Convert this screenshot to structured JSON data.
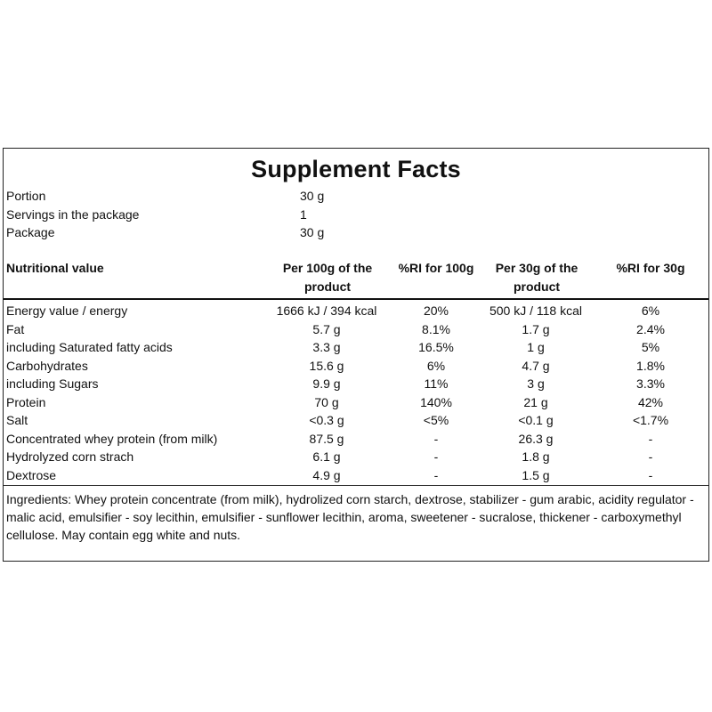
{
  "title": "Supplement Facts",
  "meta": [
    {
      "label": "Portion",
      "value": "30 g"
    },
    {
      "label": "Servings in the package",
      "value": "1"
    },
    {
      "label": "Package",
      "value": "30 g"
    }
  ],
  "table": {
    "headers": [
      "Nutritional value",
      "Per 100g of the product",
      "%RI for 100g",
      "Per 30g of the product",
      "%RI for 30g"
    ],
    "rows": [
      [
        "Energy value / energy",
        "1666 kJ / 394 kcal",
        "20%",
        "500 kJ / 118 kcal",
        "6%"
      ],
      [
        "Fat",
        "5.7 g",
        "8.1%",
        "1.7 g",
        "2.4%"
      ],
      [
        "including Saturated fatty acids",
        "3.3 g",
        "16.5%",
        "1 g",
        "5%"
      ],
      [
        "Carbohydrates",
        "15.6 g",
        "6%",
        "4.7 g",
        "1.8%"
      ],
      [
        "including Sugars",
        "9.9 g",
        "11%",
        "3 g",
        "3.3%"
      ],
      [
        "Protein",
        "70 g",
        "140%",
        "21 g",
        "42%"
      ],
      [
        "Salt",
        "<0.3 g",
        "<5%",
        "<0.1 g",
        "<1.7%"
      ],
      [
        "Concentrated whey protein (from milk)",
        "87.5 g",
        "-",
        "26.3 g",
        "-"
      ],
      [
        "Hydrolyzed corn strach",
        "6.1 g",
        "-",
        "1.8 g",
        "-"
      ],
      [
        "Dextrose",
        "4.9 g",
        "-",
        "1.5 g",
        "-"
      ]
    ]
  },
  "ingredients": "Ingredients: Whey protein concentrate (from milk), hydrolized corn starch, dextrose, stabilizer - gum arabic, acidity regulator - malic acid, emulsifier - soy lecithin, emulsifier - sunflower lecithin, aroma, sweetener - sucralose, thickener - carboxymethyl cellulose. May contain egg white and nuts."
}
